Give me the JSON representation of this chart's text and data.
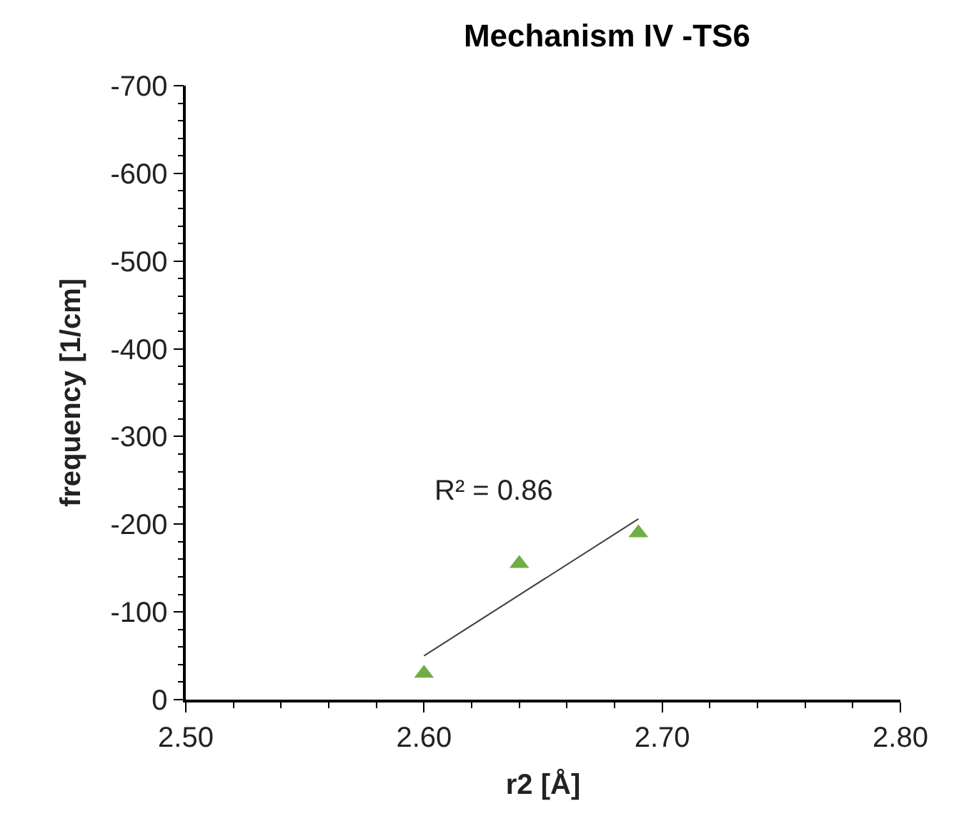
{
  "chart_data": {
    "type": "scatter",
    "title": "Mechanism IV -TS6",
    "xlabel": "r2 [Å]",
    "ylabel": "frequency [1/cm]",
    "marker": "triangle",
    "xlim": [
      2.5,
      2.8
    ],
    "ylim": [
      0,
      -700
    ],
    "xticks": [
      {
        "value": 2.5,
        "label": "2.50"
      },
      {
        "value": 2.52,
        "label": null
      },
      {
        "value": 2.54,
        "label": null
      },
      {
        "value": 2.56,
        "label": null
      },
      {
        "value": 2.58,
        "label": null
      },
      {
        "value": 2.6,
        "label": "2.60"
      },
      {
        "value": 2.62,
        "label": null
      },
      {
        "value": 2.64,
        "label": null
      },
      {
        "value": 2.66,
        "label": null
      },
      {
        "value": 2.68,
        "label": null
      },
      {
        "value": 2.7,
        "label": "2.70"
      },
      {
        "value": 2.72,
        "label": null
      },
      {
        "value": 2.74,
        "label": null
      },
      {
        "value": 2.76,
        "label": null
      },
      {
        "value": 2.78,
        "label": null
      },
      {
        "value": 2.8,
        "label": "2.80"
      }
    ],
    "yticks": [
      0,
      {
        "value": -20,
        "label": null
      },
      {
        "value": -40,
        "label": null
      },
      {
        "value": -60,
        "label": null
      },
      {
        "value": -80,
        "label": null
      },
      -100,
      {
        "value": -120,
        "label": null
      },
      {
        "value": -140,
        "label": null
      },
      {
        "value": -160,
        "label": null
      },
      {
        "value": -180,
        "label": null
      },
      -200,
      {
        "value": -220,
        "label": null
      },
      {
        "value": -240,
        "label": null
      },
      {
        "value": -260,
        "label": null
      },
      {
        "value": -280,
        "label": null
      },
      -300,
      {
        "value": -320,
        "label": null
      },
      {
        "value": -340,
        "label": null
      },
      {
        "value": -360,
        "label": null
      },
      {
        "value": -380,
        "label": null
      },
      -400,
      {
        "value": -420,
        "label": null
      },
      {
        "value": -440,
        "label": null
      },
      {
        "value": -460,
        "label": null
      },
      {
        "value": -480,
        "label": null
      },
      -500,
      {
        "value": -520,
        "label": null
      },
      {
        "value": -540,
        "label": null
      },
      {
        "value": -560,
        "label": null
      },
      {
        "value": -580,
        "label": null
      },
      -600,
      {
        "value": -620,
        "label": null
      },
      {
        "value": -640,
        "label": null
      },
      {
        "value": -660,
        "label": null
      },
      {
        "value": -680,
        "label": null
      },
      -700
    ],
    "x": [
      2.6,
      2.64,
      2.69
    ],
    "series": [
      {
        "color": "#70ad47",
        "values": [
          -30,
          -155,
          -190
        ]
      },
      {
        "type": "line",
        "color": "#404040",
        "marker": "none",
        "x": [
          2.6,
          2.69
        ],
        "values": [
          -50,
          -206
        ]
      }
    ],
    "annotations": [
      "R² = 0.86"
    ]
  }
}
